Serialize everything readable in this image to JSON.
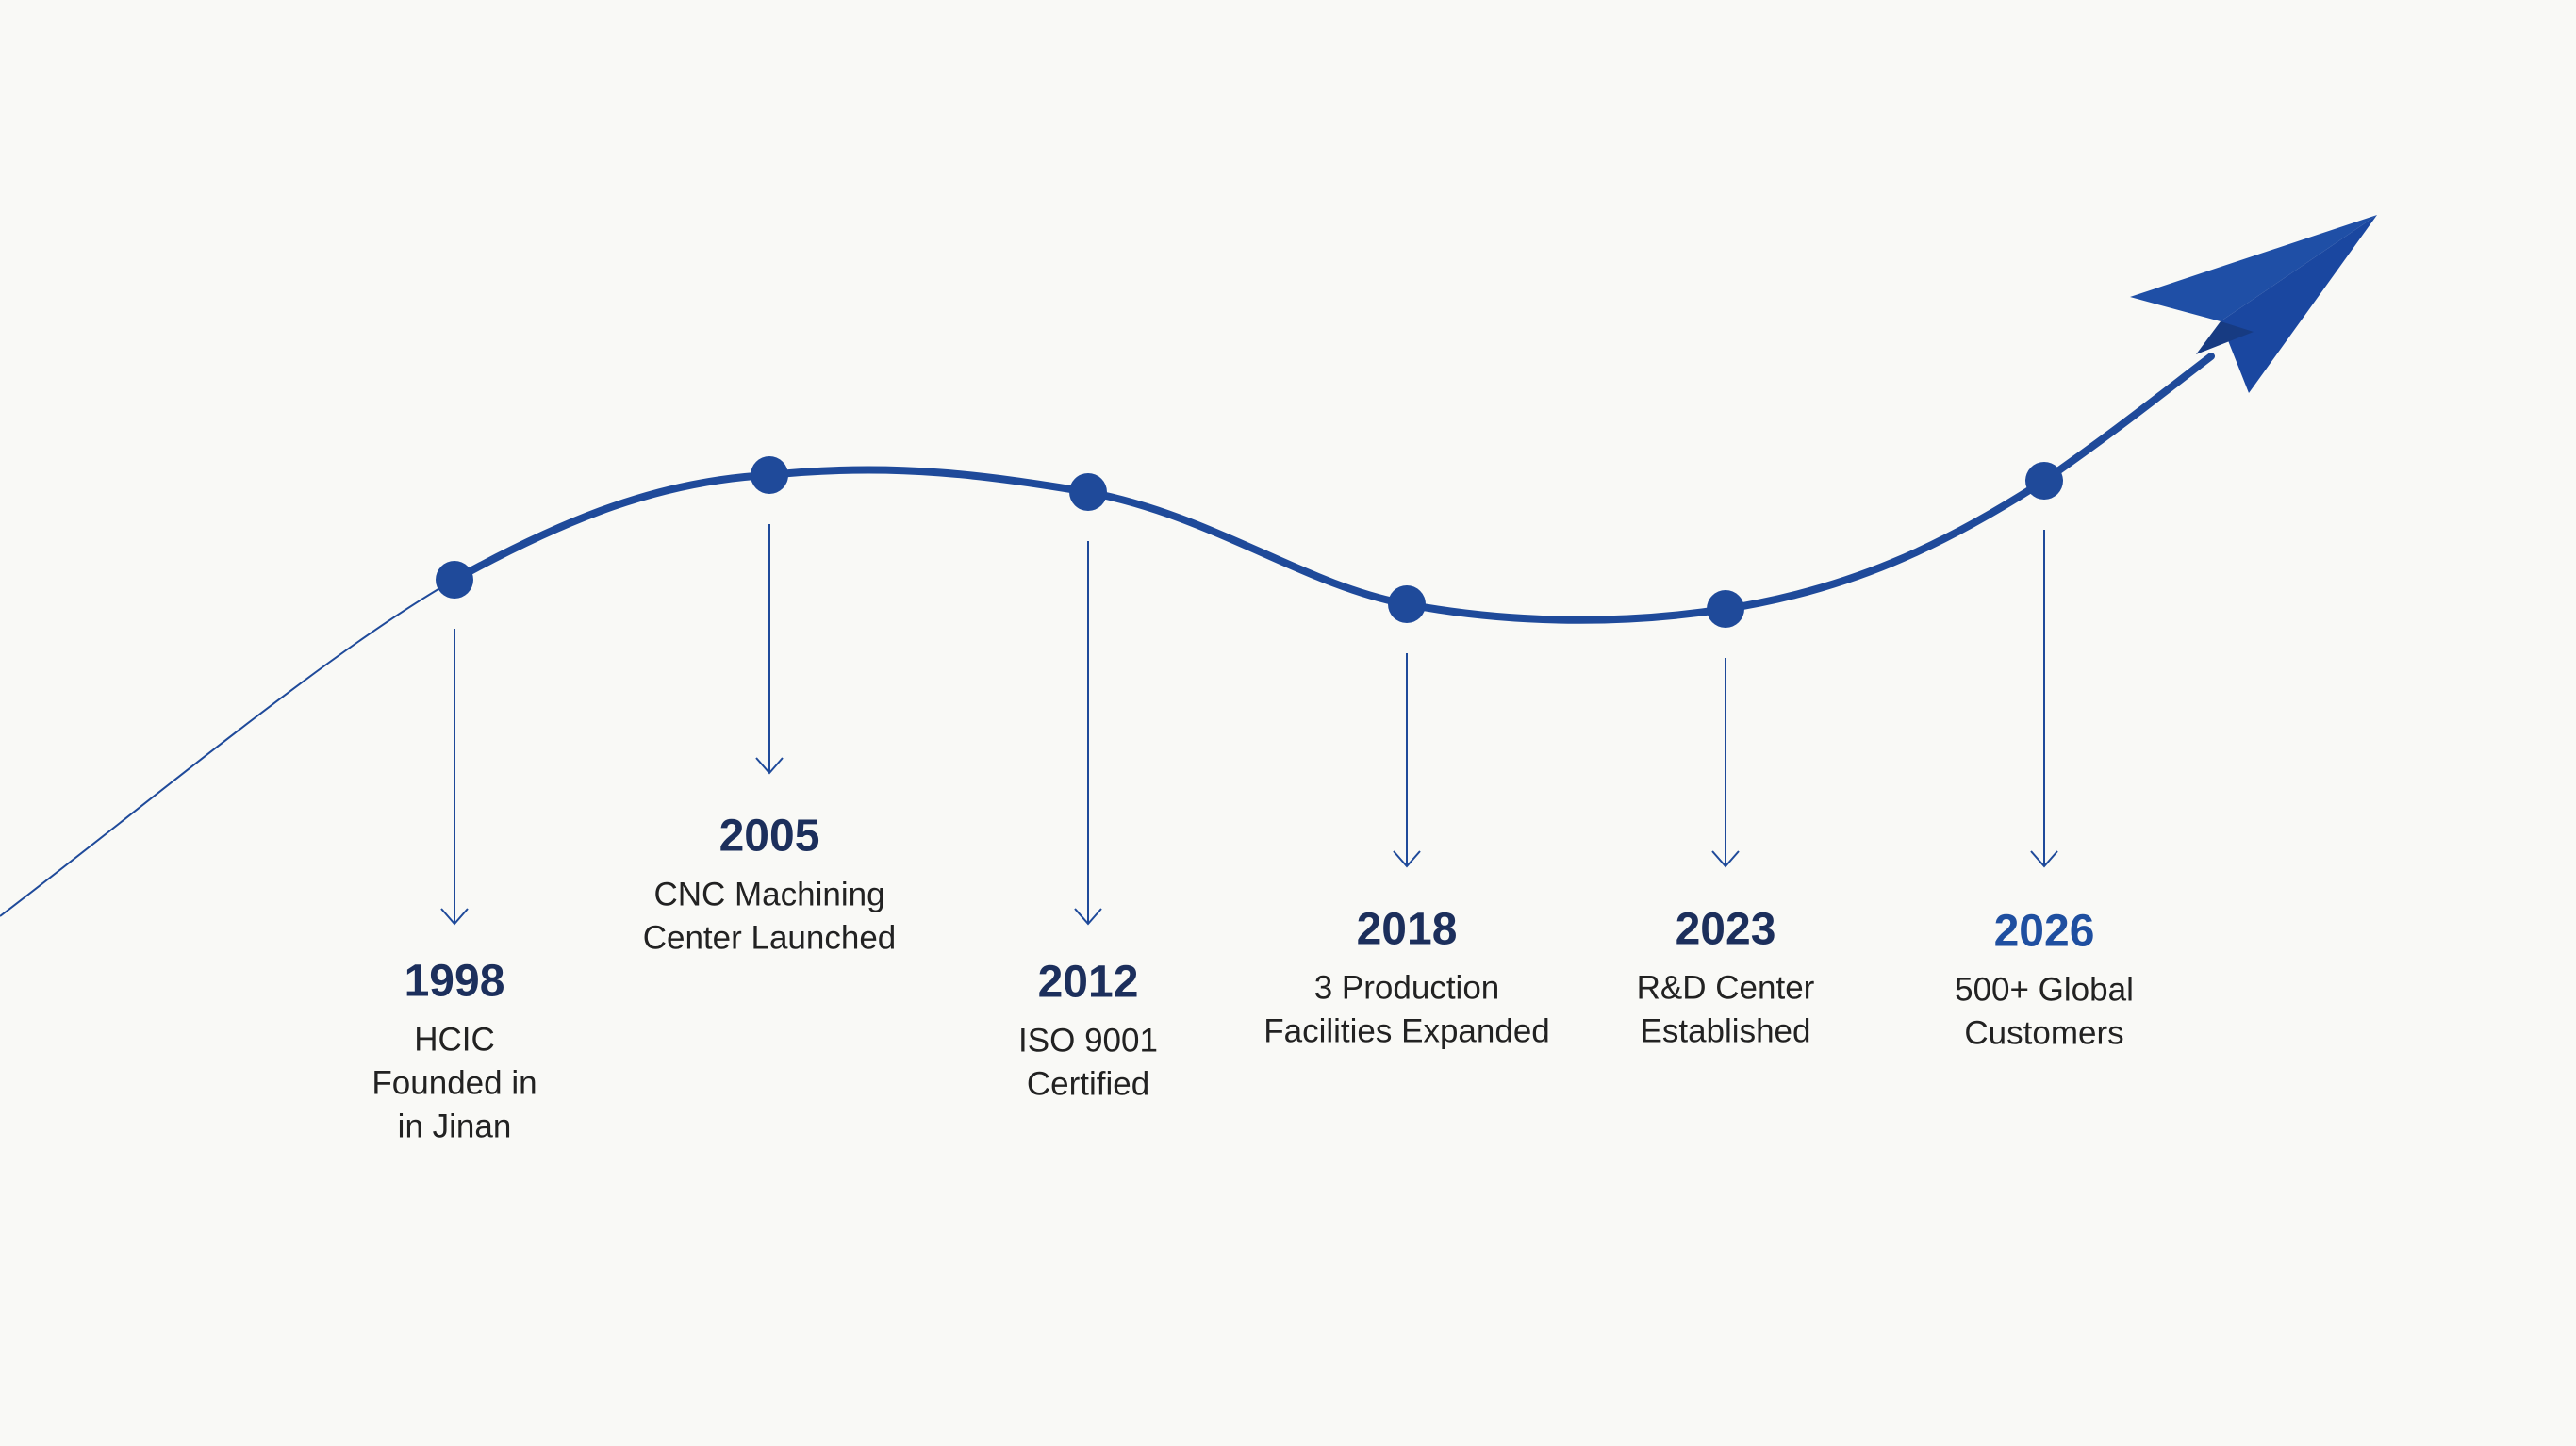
{
  "milestones": [
    {
      "year": "1998",
      "lines": [
        "HCIC",
        "Founded in",
        "in Jinan"
      ]
    },
    {
      "year": "2005",
      "lines": [
        "CNC Machining",
        "Center Launched"
      ]
    },
    {
      "year": "2012",
      "lines": [
        "ISO 9001",
        "Certified"
      ]
    },
    {
      "year": "2018",
      "lines": [
        "3 Production",
        "Facilities Expanded"
      ]
    },
    {
      "year": "2023",
      "lines": [
        "R&D Center",
        "Established"
      ]
    },
    {
      "year": "2026",
      "lines": [
        "500+ Global",
        "Customers"
      ]
    }
  ]
}
